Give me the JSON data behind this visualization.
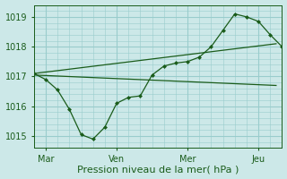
{
  "background_color": "#cce8e8",
  "grid_color": "#99cccc",
  "line_color": "#1a5c1a",
  "ylim": [
    1014.6,
    1019.4
  ],
  "yticks": [
    1015,
    1016,
    1017,
    1018,
    1019
  ],
  "xlabel": "Pression niveau de la mer( hPa )",
  "xlabel_fontsize": 8,
  "tick_fontsize": 7,
  "xtick_labels": [
    "Mar",
    "Ven",
    "Mer",
    "Jeu"
  ],
  "xtick_positions": [
    2,
    14,
    26,
    38
  ],
  "total_points": 42,
  "trend1": {
    "x": [
      0,
      41
    ],
    "y": [
      1017.05,
      1016.7
    ]
  },
  "trend2": {
    "x": [
      0,
      41
    ],
    "y": [
      1017.1,
      1018.1
    ]
  },
  "jagged_x": [
    0,
    2,
    4,
    6,
    8,
    10,
    12,
    14,
    16,
    18,
    20,
    22,
    24,
    26,
    28,
    30,
    32,
    34,
    36,
    38,
    40,
    42
  ],
  "jagged_y": [
    1017.1,
    1016.9,
    1016.55,
    1015.9,
    1015.05,
    1014.9,
    1015.3,
    1016.1,
    1016.3,
    1016.35,
    1017.05,
    1017.35,
    1017.45,
    1017.5,
    1017.65,
    1018.0,
    1018.55,
    1019.1,
    1019.0,
    1018.85,
    1018.4,
    1018.0
  ],
  "vline_positions": [
    2,
    14,
    26,
    38
  ]
}
